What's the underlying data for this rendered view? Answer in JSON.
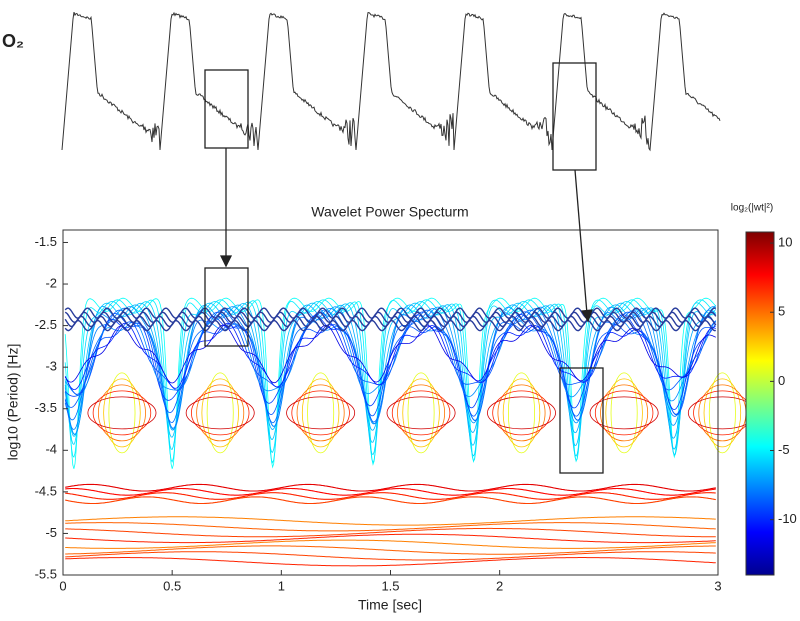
{
  "chart_data": [
    {
      "type": "trace",
      "label": "O₂"
    },
    {
      "type": "contour",
      "title": "Wavelet Power Specturm",
      "xlabel": "Time [sec]",
      "ylabel": "log10 (Period) [Hz]",
      "xlim": [
        0,
        3
      ],
      "ylim": [
        -5.5,
        -1.35
      ],
      "xticks": [
        0,
        0.5,
        1,
        1.5,
        2,
        3
      ],
      "yticks": [
        -1.5,
        -2,
        -2.5,
        -3,
        -3.5,
        -4,
        -4.5,
        -5,
        -5.5
      ],
      "colorbar_label": "log₂(|wt|²)",
      "clim": [
        -14,
        10.8
      ],
      "cticks": [
        10,
        5,
        0,
        -5,
        -10
      ]
    }
  ]
}
